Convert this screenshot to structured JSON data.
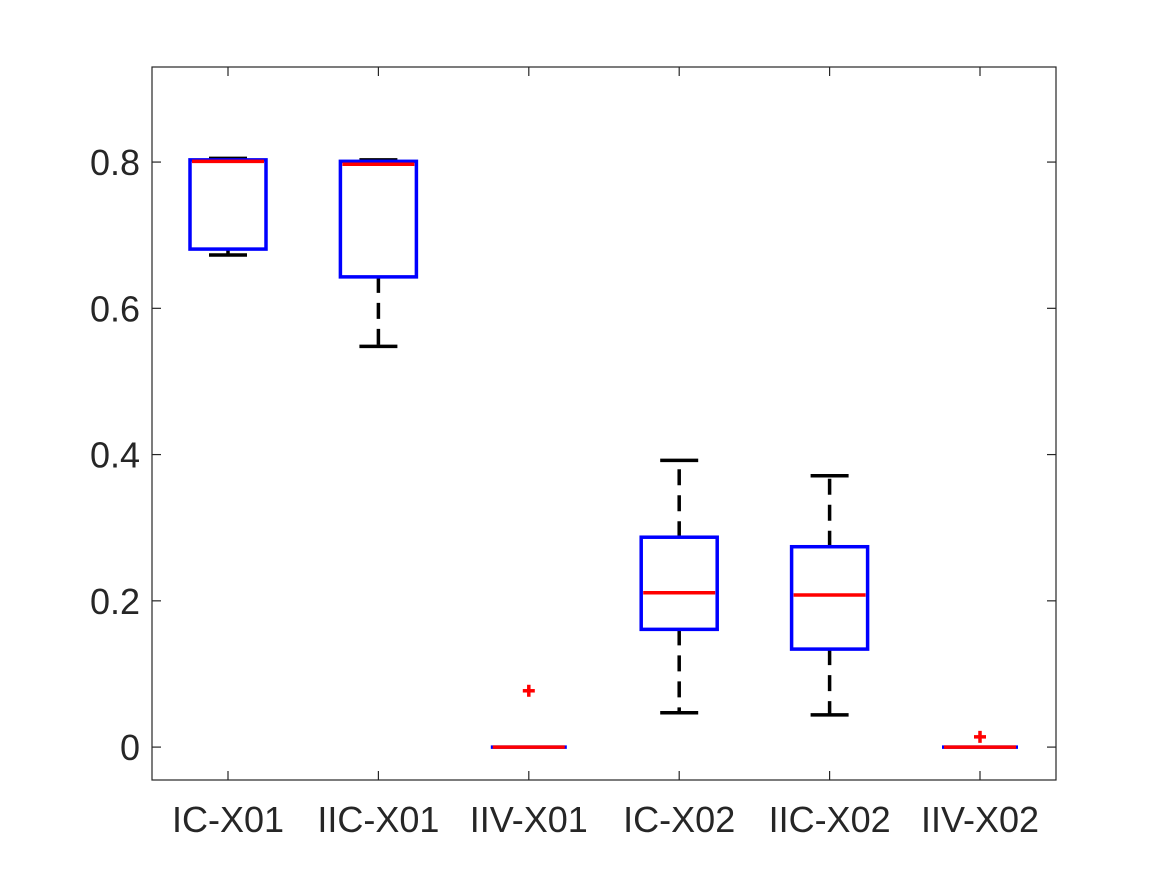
{
  "chart_data": {
    "type": "box",
    "title": "",
    "xlabel": "",
    "ylabel": "",
    "ylim": [
      -0.045,
      0.93
    ],
    "yticks": [
      0,
      0.2,
      0.4,
      0.6,
      0.8
    ],
    "ytick_labels": [
      "0",
      "0.2",
      "0.4",
      "0.6",
      "0.8"
    ],
    "categories": [
      "IC-X01",
      "IIC-X01",
      "IIV-X01",
      "IC-X02",
      "IIC-X02",
      "IIV-X02"
    ],
    "boxes": [
      {
        "q1": 0.681,
        "median": 0.801,
        "q3": 0.803,
        "whisker_low": 0.673,
        "whisker_high": 0.805,
        "outliers": []
      },
      {
        "q1": 0.643,
        "median": 0.797,
        "q3": 0.801,
        "whisker_low": 0.548,
        "whisker_high": 0.803,
        "outliers": []
      },
      {
        "q1": 0.0,
        "median": 0.0,
        "q3": 0.0,
        "whisker_low": 0.0,
        "whisker_high": 0.0,
        "outliers": [
          0.077
        ]
      },
      {
        "q1": 0.161,
        "median": 0.211,
        "q3": 0.287,
        "whisker_low": 0.047,
        "whisker_high": 0.392,
        "outliers": []
      },
      {
        "q1": 0.134,
        "median": 0.208,
        "q3": 0.274,
        "whisker_low": 0.044,
        "whisker_high": 0.371,
        "outliers": []
      },
      {
        "q1": 0.0,
        "median": 0.0,
        "q3": 0.0,
        "whisker_low": 0.0,
        "whisker_high": 0.0,
        "outliers": [
          0.014
        ]
      }
    ],
    "grid": false,
    "legend": "none",
    "colors": {
      "box": "#0000ff",
      "median": "#ff0000",
      "whisker": "#000000",
      "outlier": "#ff0000",
      "axis": "#262626"
    }
  }
}
